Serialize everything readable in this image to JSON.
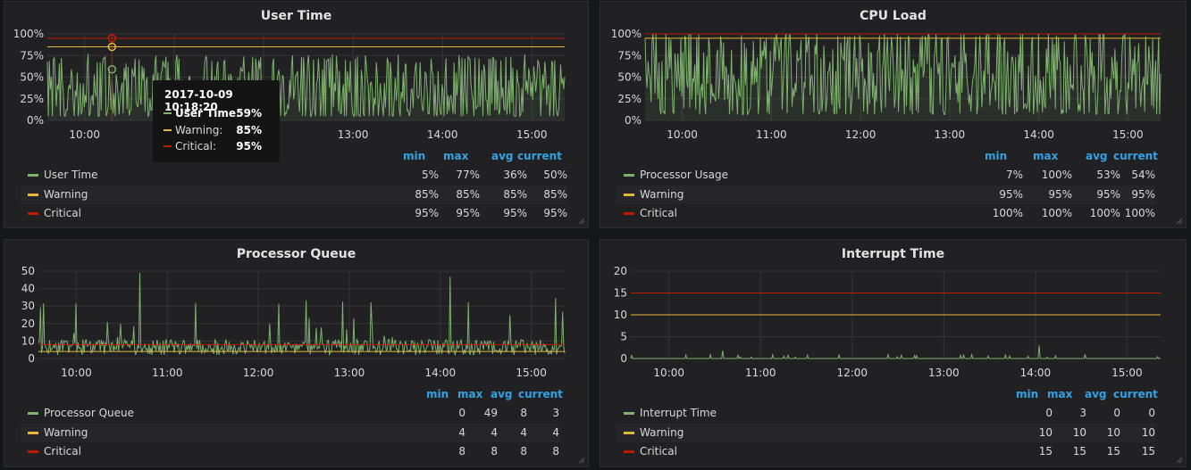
{
  "colors": {
    "user": "#7eb26d",
    "warning": "#eab839",
    "critical": "#bf1b00",
    "legend_header": "#33a2e5",
    "grid": "#353537",
    "axis_text": "#d8d9da"
  },
  "legend_headers": {
    "min": "min",
    "max": "max",
    "avg": "avg",
    "current": "current"
  },
  "tooltip": {
    "time": "2017-10-09 10:18:20",
    "rows": [
      {
        "name": "User Time:",
        "value": "59%",
        "color": "#7eb26d",
        "bold": true
      },
      {
        "name": "Warning:",
        "value": "85%",
        "color": "#eab839",
        "bold": false
      },
      {
        "name": "Critical:",
        "value": "95%",
        "color": "#bf1b00",
        "bold": false
      }
    ]
  },
  "panels": [
    {
      "id": "user-time",
      "title": "User Time",
      "legend": [
        {
          "name": "User Time",
          "min": "5%",
          "max": "77%",
          "avg": "36%",
          "current": "50%",
          "color": "#7eb26d"
        },
        {
          "name": "Warning",
          "min": "85%",
          "max": "85%",
          "avg": "85%",
          "current": "85%",
          "color": "#eab839"
        },
        {
          "name": "Critical",
          "min": "95%",
          "max": "95%",
          "avg": "95%",
          "current": "95%",
          "color": "#bf1b00"
        }
      ]
    },
    {
      "id": "cpu-load",
      "title": "CPU Load",
      "legend": [
        {
          "name": "Processor Usage",
          "min": "7%",
          "max": "100%",
          "avg": "53%",
          "current": "54%",
          "color": "#7eb26d"
        },
        {
          "name": "Warning",
          "min": "95%",
          "max": "95%",
          "avg": "95%",
          "current": "95%",
          "color": "#eab839"
        },
        {
          "name": "Critical",
          "min": "100%",
          "max": "100%",
          "avg": "100%",
          "current": "100%",
          "color": "#bf1b00"
        }
      ]
    },
    {
      "id": "processor-queue",
      "title": "Processor Queue",
      "legend": [
        {
          "name": "Processor Queue",
          "min": "0",
          "max": "49",
          "avg": "8",
          "current": "3",
          "color": "#7eb26d"
        },
        {
          "name": "Warning",
          "min": "4",
          "max": "4",
          "avg": "4",
          "current": "4",
          "color": "#eab839"
        },
        {
          "name": "Critical",
          "min": "8",
          "max": "8",
          "avg": "8",
          "current": "8",
          "color": "#bf1b00"
        }
      ]
    },
    {
      "id": "interrupt-time",
      "title": "Interrupt Time",
      "legend": [
        {
          "name": "Interrupt Time",
          "min": "0",
          "max": "3",
          "avg": "0",
          "current": "0",
          "color": "#7eb26d"
        },
        {
          "name": "Warning",
          "min": "10",
          "max": "10",
          "avg": "10",
          "current": "10",
          "color": "#eab839"
        },
        {
          "name": "Critical",
          "min": "15",
          "max": "15",
          "avg": "15",
          "current": "15",
          "color": "#bf1b00"
        }
      ]
    }
  ],
  "chart_data": [
    {
      "type": "line",
      "title": "User Time",
      "xlabel": "",
      "ylabel": "",
      "x_ticks": [
        "10:00",
        "11:00",
        "12:00",
        "13:00",
        "14:00",
        "15:00"
      ],
      "y_ticks": [
        "0%",
        "25%",
        "50%",
        "75%",
        "100%"
      ],
      "ylim": [
        0,
        100
      ],
      "x_range": [
        "09:35",
        "15:22"
      ],
      "fill": true,
      "series": [
        {
          "name": "User Time",
          "color": "#7eb26d",
          "min": 5,
          "max": 77,
          "avg": 36,
          "current": 50,
          "noise": 1.0
        },
        {
          "name": "Warning",
          "color": "#eab839",
          "constant": 85
        },
        {
          "name": "Critical",
          "color": "#bf1b00",
          "constant": 95
        }
      ],
      "highlight_x": "10:18:20"
    },
    {
      "type": "line",
      "title": "CPU Load",
      "xlabel": "",
      "ylabel": "",
      "x_ticks": [
        "10:00",
        "11:00",
        "12:00",
        "13:00",
        "14:00",
        "15:00"
      ],
      "y_ticks": [
        "0%",
        "25%",
        "50%",
        "75%",
        "100%"
      ],
      "ylim": [
        0,
        100
      ],
      "x_range": [
        "09:35",
        "15:22"
      ],
      "fill": true,
      "series": [
        {
          "name": "Processor Usage",
          "color": "#7eb26d",
          "min": 7,
          "max": 100,
          "avg": 53,
          "current": 54,
          "noise": 1.0
        },
        {
          "name": "Warning",
          "color": "#eab839",
          "constant": 95
        },
        {
          "name": "Critical",
          "color": "#bf1b00",
          "constant": 100
        }
      ]
    },
    {
      "type": "line",
      "title": "Processor Queue",
      "xlabel": "",
      "ylabel": "",
      "x_ticks": [
        "10:00",
        "11:00",
        "12:00",
        "13:00",
        "14:00",
        "15:00"
      ],
      "y_ticks": [
        "0",
        "10",
        "20",
        "30",
        "40",
        "50"
      ],
      "ylim": [
        0,
        50
      ],
      "x_range": [
        "09:35",
        "15:22"
      ],
      "fill": false,
      "series": [
        {
          "name": "Processor Queue",
          "color": "#7eb26d",
          "min": 0,
          "max": 49,
          "avg": 8,
          "current": 3,
          "noise": 1.0
        },
        {
          "name": "Warning",
          "color": "#eab839",
          "constant": 4
        },
        {
          "name": "Critical",
          "color": "#bf1b00",
          "constant": 8
        }
      ]
    },
    {
      "type": "line",
      "title": "Interrupt Time",
      "xlabel": "",
      "ylabel": "",
      "x_ticks": [
        "10:00",
        "11:00",
        "12:00",
        "13:00",
        "14:00",
        "15:00"
      ],
      "y_ticks": [
        "0",
        "5",
        "10",
        "15",
        "20"
      ],
      "ylim": [
        0,
        20
      ],
      "x_range": [
        "09:35",
        "15:22"
      ],
      "fill": false,
      "series": [
        {
          "name": "Interrupt Time",
          "color": "#7eb26d",
          "min": 0,
          "max": 3,
          "avg": 0,
          "current": 0,
          "noise": 0.15
        },
        {
          "name": "Warning",
          "color": "#eab839",
          "constant": 10
        },
        {
          "name": "Critical",
          "color": "#bf1b00",
          "constant": 15
        }
      ]
    }
  ]
}
